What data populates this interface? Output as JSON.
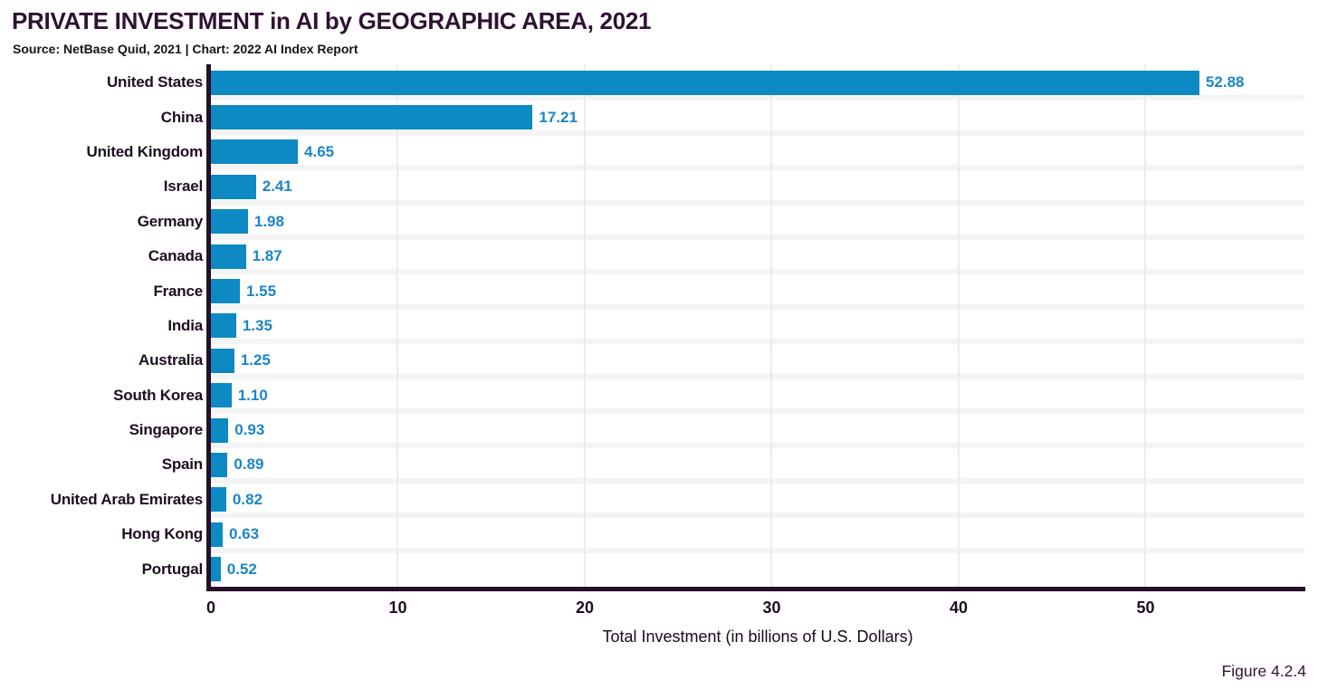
{
  "figure_label": "Figure 4.2.4",
  "colors": {
    "bar": "#0d89c4",
    "value_label": "#1b86c8",
    "axis": "#261027",
    "text_dark": "#1d0e1f",
    "title": "#2f1133",
    "gridline": "#ececec",
    "row_band": "#f4f4f4"
  },
  "chart_data": {
    "type": "bar",
    "orientation": "horizontal",
    "title": "PRIVATE INVESTMENT in AI by GEOGRAPHIC AREA, 2021",
    "subtitle": "Source: NetBase Quid, 2021 | Chart: 2022 AI Index Report",
    "categories": [
      "United States",
      "China",
      "United Kingdom",
      "Israel",
      "Germany",
      "Canada",
      "France",
      "India",
      "Australia",
      "South Korea",
      "Singapore",
      "Spain",
      "United Arab Emirates",
      "Hong Kong",
      "Portugal"
    ],
    "values": [
      52.88,
      17.21,
      4.65,
      2.41,
      1.98,
      1.87,
      1.55,
      1.35,
      1.25,
      1.1,
      0.93,
      0.89,
      0.82,
      0.63,
      0.52
    ],
    "value_labels": [
      "52.88",
      "17.21",
      "4.65",
      "2.41",
      "1.98",
      "1.87",
      "1.55",
      "1.35",
      "1.25",
      "1.10",
      "0.93",
      "0.89",
      "0.82",
      "0.63",
      "0.52"
    ],
    "xlabel": "Total Investment (in billions of U.S. Dollars)",
    "ylabel": "",
    "xlim": [
      0,
      58.5
    ],
    "xticks": [
      0,
      10,
      20,
      30,
      40,
      50
    ],
    "grid": true,
    "legend": false
  }
}
